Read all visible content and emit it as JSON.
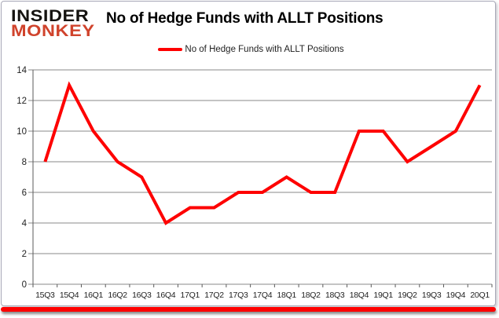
{
  "header": {
    "logo_line1": "INSIDER",
    "logo_line2": "MONKEY",
    "title": "No of Hedge Funds with ALLT Positions"
  },
  "legend": {
    "label": "No of Hedge Funds with ALLT Positions"
  },
  "chart_data": {
    "type": "line",
    "title": "No of Hedge Funds with ALLT Positions",
    "categories": [
      "15Q3",
      "15Q4",
      "16Q1",
      "16Q2",
      "16Q3",
      "16Q4",
      "17Q1",
      "17Q2",
      "17Q3",
      "17Q4",
      "18Q1",
      "18Q2",
      "18Q3",
      "18Q4",
      "19Q1",
      "19Q2",
      "19Q3",
      "19Q4",
      "20Q1"
    ],
    "series": [
      {
        "name": "No of Hedge Funds with ALLT Positions",
        "values": [
          8,
          13,
          10,
          8,
          7,
          4,
          5,
          5,
          6,
          6,
          7,
          6,
          6,
          10,
          10,
          8,
          9,
          10,
          13
        ],
        "color": "#fe0000"
      }
    ],
    "xlabel": "",
    "ylabel": "",
    "ylim": [
      0,
      14
    ],
    "ytick_step": 2,
    "grid": true,
    "legend_position": "top-center"
  },
  "colors": {
    "line_red": "#fe0000",
    "logo_red": "#d0432c",
    "logo_black": "#151310",
    "grid_gray": "#898989",
    "axis_gray": "#5a5a5a",
    "border_gray": "#a9a9b8",
    "bottom_bar_red": "#fe0000"
  }
}
